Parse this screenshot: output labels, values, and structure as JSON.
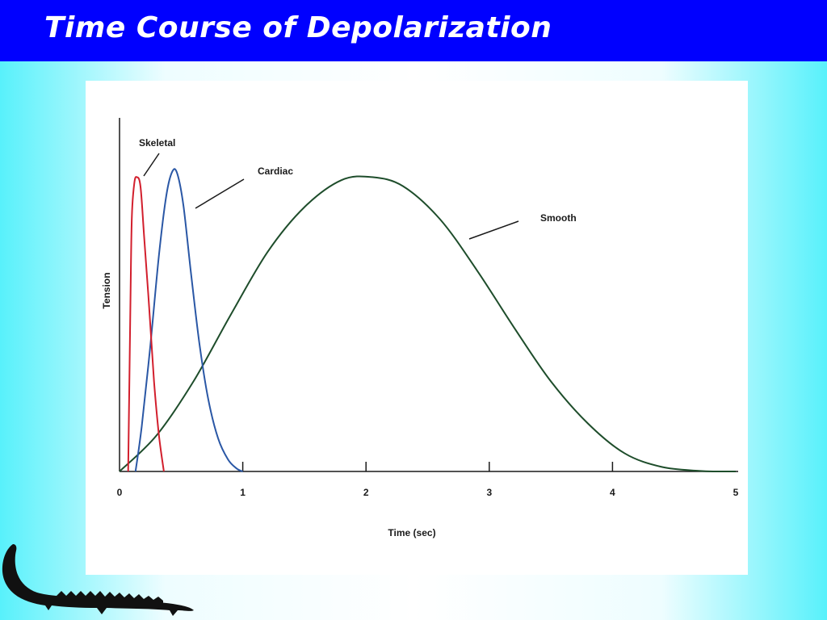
{
  "slide": {
    "title": "Time Course of Depolarization"
  },
  "colors": {
    "title_bar": "#0000ff",
    "title_text": "#ffffff",
    "skeletal": "#d21f2d",
    "cardiac": "#2a57a5",
    "smooth": "#1e4d2b",
    "axis": "#1a1a1a"
  },
  "chart_data": {
    "type": "line",
    "xlabel": "Time (sec)",
    "ylabel": "Tension",
    "xlim": [
      0,
      5
    ],
    "xticks": [
      0,
      1,
      2,
      3,
      4,
      5
    ],
    "xtick_labels": [
      "0",
      "1",
      "2",
      "3",
      "4",
      "5"
    ],
    "grid": false,
    "legend": "none",
    "series": [
      {
        "name": "Skeletal",
        "color": "#d21f2d",
        "x": [
          0.07,
          0.08,
          0.09,
          0.1,
          0.12,
          0.14,
          0.17,
          0.2,
          0.24,
          0.28,
          0.32,
          0.36
        ],
        "y": [
          0,
          0.3,
          0.6,
          0.85,
          0.96,
          0.98,
          0.95,
          0.78,
          0.55,
          0.3,
          0.12,
          0
        ]
      },
      {
        "name": "Cardiac",
        "color": "#2a57a5",
        "x": [
          0.13,
          0.18,
          0.25,
          0.32,
          0.38,
          0.43,
          0.47,
          0.52,
          0.58,
          0.65,
          0.72,
          0.8,
          0.88,
          0.95,
          1.0
        ],
        "y": [
          0,
          0.15,
          0.42,
          0.72,
          0.92,
          1.0,
          0.99,
          0.88,
          0.66,
          0.42,
          0.24,
          0.11,
          0.04,
          0.01,
          0
        ]
      },
      {
        "name": "Smooth",
        "color": "#1e4d2b",
        "x": [
          0,
          0.3,
          0.6,
          0.9,
          1.2,
          1.5,
          1.8,
          2.05,
          2.3,
          2.6,
          2.9,
          3.2,
          3.5,
          3.8,
          4.1,
          4.4,
          4.7,
          4.85,
          5.0
        ],
        "y": [
          0,
          0.12,
          0.3,
          0.52,
          0.73,
          0.88,
          0.97,
          0.98,
          0.95,
          0.84,
          0.67,
          0.48,
          0.3,
          0.16,
          0.06,
          0.015,
          0.002,
          0,
          0
        ]
      }
    ],
    "annotations": [
      {
        "text": "Skeletal",
        "series": "Skeletal"
      },
      {
        "text": "Cardiac",
        "series": "Cardiac"
      },
      {
        "text": "Smooth",
        "series": "Smooth"
      }
    ]
  }
}
